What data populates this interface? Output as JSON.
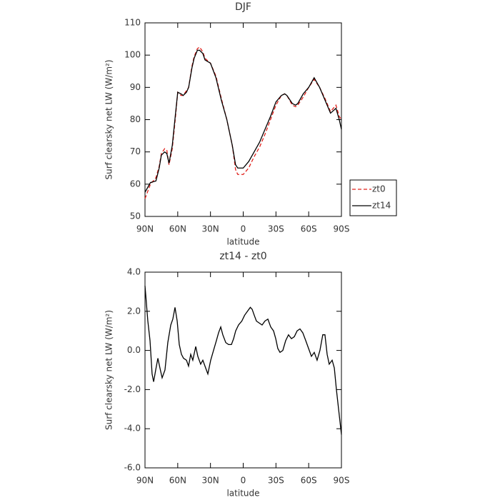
{
  "chart_data": [
    {
      "type": "line",
      "title": "DJF",
      "xlabel": "latitude",
      "ylabel": "Surf clearsky net LW (W/m²)",
      "x": [
        90,
        85,
        80,
        77,
        75,
        72,
        70,
        68,
        65,
        62,
        60,
        57,
        55,
        52,
        50,
        47,
        45,
        42,
        40,
        37,
        35,
        30,
        25,
        20,
        15,
        10,
        7,
        5,
        0,
        -5,
        -10,
        -15,
        -20,
        -25,
        -30,
        -35,
        -38,
        -40,
        -45,
        -48,
        -50,
        -55,
        -60,
        -65,
        -70,
        -75,
        -80,
        -85,
        -88,
        -90
      ],
      "series": [
        {
          "name": "zt0",
          "color": "#e0201b",
          "linestyle": "dashed",
          "values": [
            55.5,
            60,
            62,
            65.5,
            69.5,
            71,
            70.5,
            66,
            71,
            81,
            88.5,
            87.5,
            87.5,
            89,
            90,
            96.5,
            99.5,
            102,
            102.5,
            101,
            99,
            97.5,
            93.5,
            86.5,
            80,
            72,
            64.5,
            63,
            63,
            65,
            68.5,
            71.5,
            75.5,
            80,
            84.5,
            87.5,
            88,
            87.5,
            84.5,
            84,
            84.5,
            87,
            90,
            92.5,
            90,
            86.5,
            82.5,
            84.5,
            81,
            80
          ]
        },
        {
          "name": "zt14",
          "color": "#000000",
          "linestyle": "solid",
          "values": [
            57.5,
            60.5,
            61,
            65,
            69,
            70,
            69.5,
            66.5,
            72,
            82,
            88.5,
            88,
            87.5,
            88.5,
            90,
            96,
            99,
            101.5,
            101.5,
            100.5,
            98.5,
            97.5,
            93,
            86,
            80,
            72,
            66,
            65,
            65,
            67,
            70,
            73,
            77,
            81,
            85.5,
            87.5,
            88,
            87.5,
            85,
            84.5,
            85,
            88,
            90,
            93,
            90,
            86,
            82,
            83.5,
            80,
            77
          ]
        }
      ],
      "xlim": [
        90,
        -90
      ],
      "xticks": [
        {
          "value": 90,
          "label": "90N"
        },
        {
          "value": 60,
          "label": "60N"
        },
        {
          "value": 30,
          "label": "30N"
        },
        0,
        {
          "value": -30,
          "label": "30S"
        },
        {
          "value": -60,
          "label": "60S"
        },
        {
          "value": -90,
          "label": "90S"
        }
      ],
      "ylim": [
        50,
        110
      ],
      "yticks": [
        50,
        60,
        70,
        80,
        90,
        100,
        110
      ],
      "legend": "right"
    },
    {
      "type": "line",
      "title": "zt14 - zt0",
      "xlabel": "latitude",
      "ylabel": "Surf clearsky net LW (W/m²)",
      "x": [
        90,
        87.4,
        85.4,
        83.5,
        82.1,
        80.2,
        78.2,
        76.3,
        74.3,
        71.7,
        69.1,
        66.4,
        64.5,
        62.5,
        60.5,
        58.6,
        56.6,
        54.7,
        52,
        50.1,
        48.1,
        46.2,
        43.5,
        41.6,
        39,
        37,
        34.4,
        32.4,
        29.8,
        27.2,
        24.6,
        22.6,
        20.6,
        18.7,
        16,
        13.4,
        10.8,
        8.8,
        6.9,
        4.3,
        1.3,
        -1.3,
        -3.9,
        -6.5,
        -8.2,
        -10.1,
        -12.1,
        -14.7,
        -17.3,
        -19.9,
        -22.6,
        -25.2,
        -27.8,
        -29.8,
        -31.7,
        -33.7,
        -36.3,
        -38.9,
        -41.5,
        -44.2,
        -46.8,
        -49.4,
        -52,
        -54.6,
        -57.3,
        -59.9,
        -62.5,
        -65.1,
        -67.7,
        -70.3,
        -72.9,
        -74.9,
        -76.9,
        -78.8,
        -81.5,
        -83.5,
        -85.4,
        -87.4,
        -90
      ],
      "series": [
        {
          "name": "zt14 - zt0",
          "color": "#000000",
          "linestyle": "solid",
          "values": [
            3.3,
            1.5,
            0.5,
            -1.2,
            -1.6,
            -1.0,
            -0.4,
            -0.9,
            -1.4,
            -1.0,
            0.4,
            1.3,
            1.6,
            2.2,
            1.5,
            0.3,
            -0.2,
            -0.4,
            -0.5,
            -0.8,
            -0.2,
            -0.5,
            0.2,
            -0.3,
            -0.7,
            -0.5,
            -0.9,
            -1.2,
            -0.5,
            0,
            0.5,
            0.9,
            1.2,
            0.8,
            0.4,
            0.3,
            0.3,
            0.6,
            1.0,
            1.3,
            1.5,
            1.8,
            2.0,
            2.2,
            2.1,
            1.8,
            1.5,
            1.4,
            1.3,
            1.5,
            1.6,
            1.2,
            1.0,
            0.6,
            0.1,
            -0.1,
            0,
            0.5,
            0.8,
            0.6,
            0.7,
            1.0,
            1.1,
            0.9,
            0.5,
            0.1,
            -0.3,
            -0.1,
            -0.5,
            0,
            0.8,
            0.8,
            -0.2,
            -0.7,
            -0.5,
            -0.9,
            -2.0,
            -3.0,
            -4.3
          ]
        }
      ],
      "xlim": [
        90,
        -90
      ],
      "xticks": [
        {
          "value": 90,
          "label": "90N"
        },
        {
          "value": 60,
          "label": "60N"
        },
        {
          "value": 30,
          "label": "30N"
        },
        0,
        {
          "value": -30,
          "label": "30S"
        },
        {
          "value": -60,
          "label": "60S"
        },
        {
          "value": -90,
          "label": "90S"
        }
      ],
      "ylim": [
        -6,
        4
      ],
      "yticks": [
        {
          "value": 4,
          "label": "4.0"
        },
        {
          "value": 2,
          "label": "2.0"
        },
        {
          "value": 0,
          "label": "0.0"
        },
        {
          "value": -2,
          "label": "-2.0"
        },
        {
          "value": -4,
          "label": "-4.0"
        },
        {
          "value": -6,
          "label": "-6.0"
        }
      ]
    }
  ]
}
